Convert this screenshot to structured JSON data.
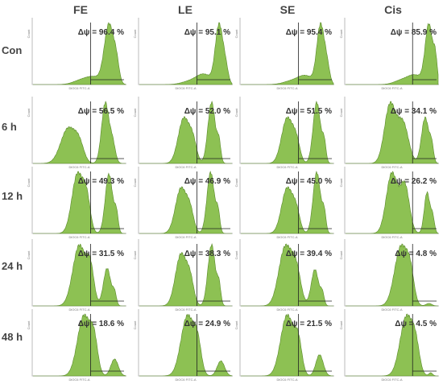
{
  "columns": [
    "FE",
    "LE",
    "SE",
    "Cis"
  ],
  "rows": [
    "Con",
    "6 h",
    "12 h",
    "24 h",
    "48 h"
  ],
  "colors": {
    "fill": "#8dc153",
    "stroke": "#5a8a2a",
    "frame": "#bbbbbb",
    "gate": "#222222"
  },
  "axis_text": {
    "x_label": "DiOC6 FITC-A",
    "y_label": "Count"
  },
  "chart_data": {
    "type": "area",
    "title": "",
    "value_label": "Δψ",
    "value_unit": "%",
    "grid": false,
    "panels": [
      [
        {
          "column": "FE",
          "row": "Con",
          "delta_psi": 96.4,
          "peaks": [
            [
              0.5,
              0.08,
              0.05
            ],
            [
              0.65,
              0.09,
              0.12
            ],
            [
              0.82,
              0.05,
              0.95
            ],
            [
              0.9,
              0.03,
              0.3
            ]
          ]
        },
        {
          "column": "LE",
          "row": "Con",
          "delta_psi": 95.1,
          "peaks": [
            [
              0.55,
              0.09,
              0.05
            ],
            [
              0.7,
              0.08,
              0.15
            ],
            [
              0.86,
              0.04,
              0.9
            ],
            [
              0.93,
              0.03,
              0.25
            ]
          ]
        },
        {
          "column": "SE",
          "row": "Con",
          "delta_psi": 95.4,
          "peaks": [
            [
              0.55,
              0.09,
              0.05
            ],
            [
              0.7,
              0.08,
              0.12
            ],
            [
              0.86,
              0.04,
              0.85
            ],
            [
              0.93,
              0.03,
              0.25
            ]
          ]
        },
        {
          "column": "Cis",
          "row": "Con",
          "delta_psi": 85.9,
          "peaks": [
            [
              0.6,
              0.08,
              0.05
            ],
            [
              0.75,
              0.08,
              0.12
            ],
            [
              0.9,
              0.04,
              0.78
            ],
            [
              0.97,
              0.02,
              0.3
            ]
          ]
        }
      ],
      [
        {
          "column": "FE",
          "row": "6 h",
          "delta_psi": 56.5,
          "peaks": [
            [
              0.38,
              0.08,
              0.55
            ],
            [
              0.5,
              0.05,
              0.25
            ],
            [
              0.78,
              0.04,
              0.95
            ],
            [
              0.86,
              0.03,
              0.3
            ]
          ]
        },
        {
          "column": "LE",
          "row": "6 h",
          "delta_psi": 52.0,
          "peaks": [
            [
              0.48,
              0.06,
              0.7
            ],
            [
              0.58,
              0.04,
              0.3
            ],
            [
              0.78,
              0.04,
              0.95
            ],
            [
              0.86,
              0.02,
              0.3
            ]
          ]
        },
        {
          "column": "SE",
          "row": "6 h",
          "delta_psi": 51.5,
          "peaks": [
            [
              0.5,
              0.06,
              0.7
            ],
            [
              0.6,
              0.04,
              0.3
            ],
            [
              0.82,
              0.04,
              0.95
            ],
            [
              0.9,
              0.02,
              0.3
            ]
          ]
        },
        {
          "column": "Cis",
          "row": "6 h",
          "delta_psi": 34.1,
          "peaks": [
            [
              0.48,
              0.06,
              0.95
            ],
            [
              0.62,
              0.06,
              0.65
            ],
            [
              0.86,
              0.04,
              0.75
            ],
            [
              0.93,
              0.02,
              0.25
            ]
          ]
        }
      ],
      [
        {
          "column": "FE",
          "row": "12 h",
          "delta_psi": 49.3,
          "peaks": [
            [
              0.48,
              0.06,
              0.95
            ],
            [
              0.58,
              0.04,
              0.5
            ],
            [
              0.82,
              0.04,
              0.95
            ],
            [
              0.9,
              0.02,
              0.3
            ]
          ]
        },
        {
          "column": "LE",
          "row": "12 h",
          "delta_psi": 46.9,
          "peaks": [
            [
              0.45,
              0.06,
              0.7
            ],
            [
              0.55,
              0.04,
              0.3
            ],
            [
              0.77,
              0.04,
              0.95
            ],
            [
              0.85,
              0.02,
              0.3
            ]
          ]
        },
        {
          "column": "SE",
          "row": "12 h",
          "delta_psi": 45.0,
          "peaks": [
            [
              0.5,
              0.06,
              0.7
            ],
            [
              0.6,
              0.04,
              0.3
            ],
            [
              0.82,
              0.04,
              0.95
            ],
            [
              0.9,
              0.02,
              0.3
            ]
          ]
        },
        {
          "column": "Cis",
          "row": "12 h",
          "delta_psi": 26.2,
          "peaks": [
            [
              0.5,
              0.06,
              0.95
            ],
            [
              0.64,
              0.05,
              0.75
            ],
            [
              0.88,
              0.03,
              0.65
            ],
            [
              0.94,
              0.02,
              0.25
            ]
          ]
        }
      ],
      [
        {
          "column": "FE",
          "row": "24 h",
          "delta_psi": 31.5,
          "peaks": [
            [
              0.5,
              0.07,
              1.0
            ],
            [
              0.62,
              0.04,
              0.55
            ],
            [
              0.8,
              0.04,
              0.62
            ],
            [
              0.88,
              0.02,
              0.2
            ]
          ]
        },
        {
          "column": "LE",
          "row": "24 h",
          "delta_psi": 38.3,
          "peaks": [
            [
              0.45,
              0.06,
              0.8
            ],
            [
              0.55,
              0.04,
              0.35
            ],
            [
              0.78,
              0.04,
              0.95
            ],
            [
              0.86,
              0.02,
              0.3
            ]
          ]
        },
        {
          "column": "SE",
          "row": "24 h",
          "delta_psi": 39.4,
          "peaks": [
            [
              0.48,
              0.07,
              1.0
            ],
            [
              0.6,
              0.05,
              0.55
            ],
            [
              0.8,
              0.04,
              0.62
            ],
            [
              0.88,
              0.02,
              0.2
            ]
          ]
        },
        {
          "column": "Cis",
          "row": "24 h",
          "delta_psi": 4.8,
          "peaks": [
            [
              0.6,
              0.07,
              0.95
            ],
            [
              0.7,
              0.04,
              0.4
            ],
            [
              0.9,
              0.03,
              0.04
            ]
          ]
        }
      ],
      [
        {
          "column": "FE",
          "row": "48 h",
          "delta_psi": 18.6,
          "peaks": [
            [
              0.55,
              0.07,
              1.0
            ],
            [
              0.66,
              0.04,
              0.5
            ],
            [
              0.88,
              0.04,
              0.28
            ]
          ]
        },
        {
          "column": "LE",
          "row": "48 h",
          "delta_psi": 24.9,
          "peaks": [
            [
              0.52,
              0.07,
              1.0
            ],
            [
              0.63,
              0.04,
              0.45
            ],
            [
              0.88,
              0.04,
              0.25
            ]
          ]
        },
        {
          "column": "SE",
          "row": "48 h",
          "delta_psi": 21.5,
          "peaks": [
            [
              0.5,
              0.07,
              1.0
            ],
            [
              0.62,
              0.04,
              0.5
            ],
            [
              0.85,
              0.04,
              0.35
            ]
          ]
        },
        {
          "column": "Cis",
          "row": "48 h",
          "delta_psi": 4.5,
          "peaks": [
            [
              0.66,
              0.07,
              0.95
            ],
            [
              0.76,
              0.04,
              0.35
            ],
            [
              0.92,
              0.02,
              0.05
            ]
          ]
        }
      ]
    ]
  }
}
